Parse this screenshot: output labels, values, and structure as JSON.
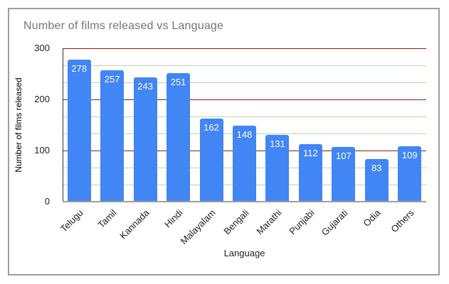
{
  "window": {
    "background_color": "#ffffff",
    "frame_border_color": "#9e9e9e"
  },
  "chart_data": {
    "type": "bar",
    "title": "Number of films released vs Language",
    "xlabel": "Language",
    "ylabel": "Number of films released",
    "categories": [
      "Telugu",
      "Tamil",
      "Kannada",
      "Hindi",
      "Malayalam",
      "Bengali",
      "Marathi",
      "Punjabi",
      "Gujarati",
      "Odia",
      "Others"
    ],
    "values": [
      278,
      257,
      243,
      251,
      162,
      148,
      131,
      112,
      107,
      83,
      109
    ],
    "data_labels_shown": true,
    "ylim": [
      0,
      300
    ],
    "yticks": [
      0,
      100,
      200,
      300
    ],
    "minor_gridlines_per_major": 3,
    "legend_position": "none",
    "grid": "on",
    "colors": {
      "bar": "#4285f4",
      "bar_value_label": "#ffffff",
      "major_gridline": "#85200c",
      "minor_gridline": "#b6d7a8",
      "axis_baseline": "#9e9e9e",
      "title_text": "#757575",
      "tick_text": "#212121"
    }
  }
}
